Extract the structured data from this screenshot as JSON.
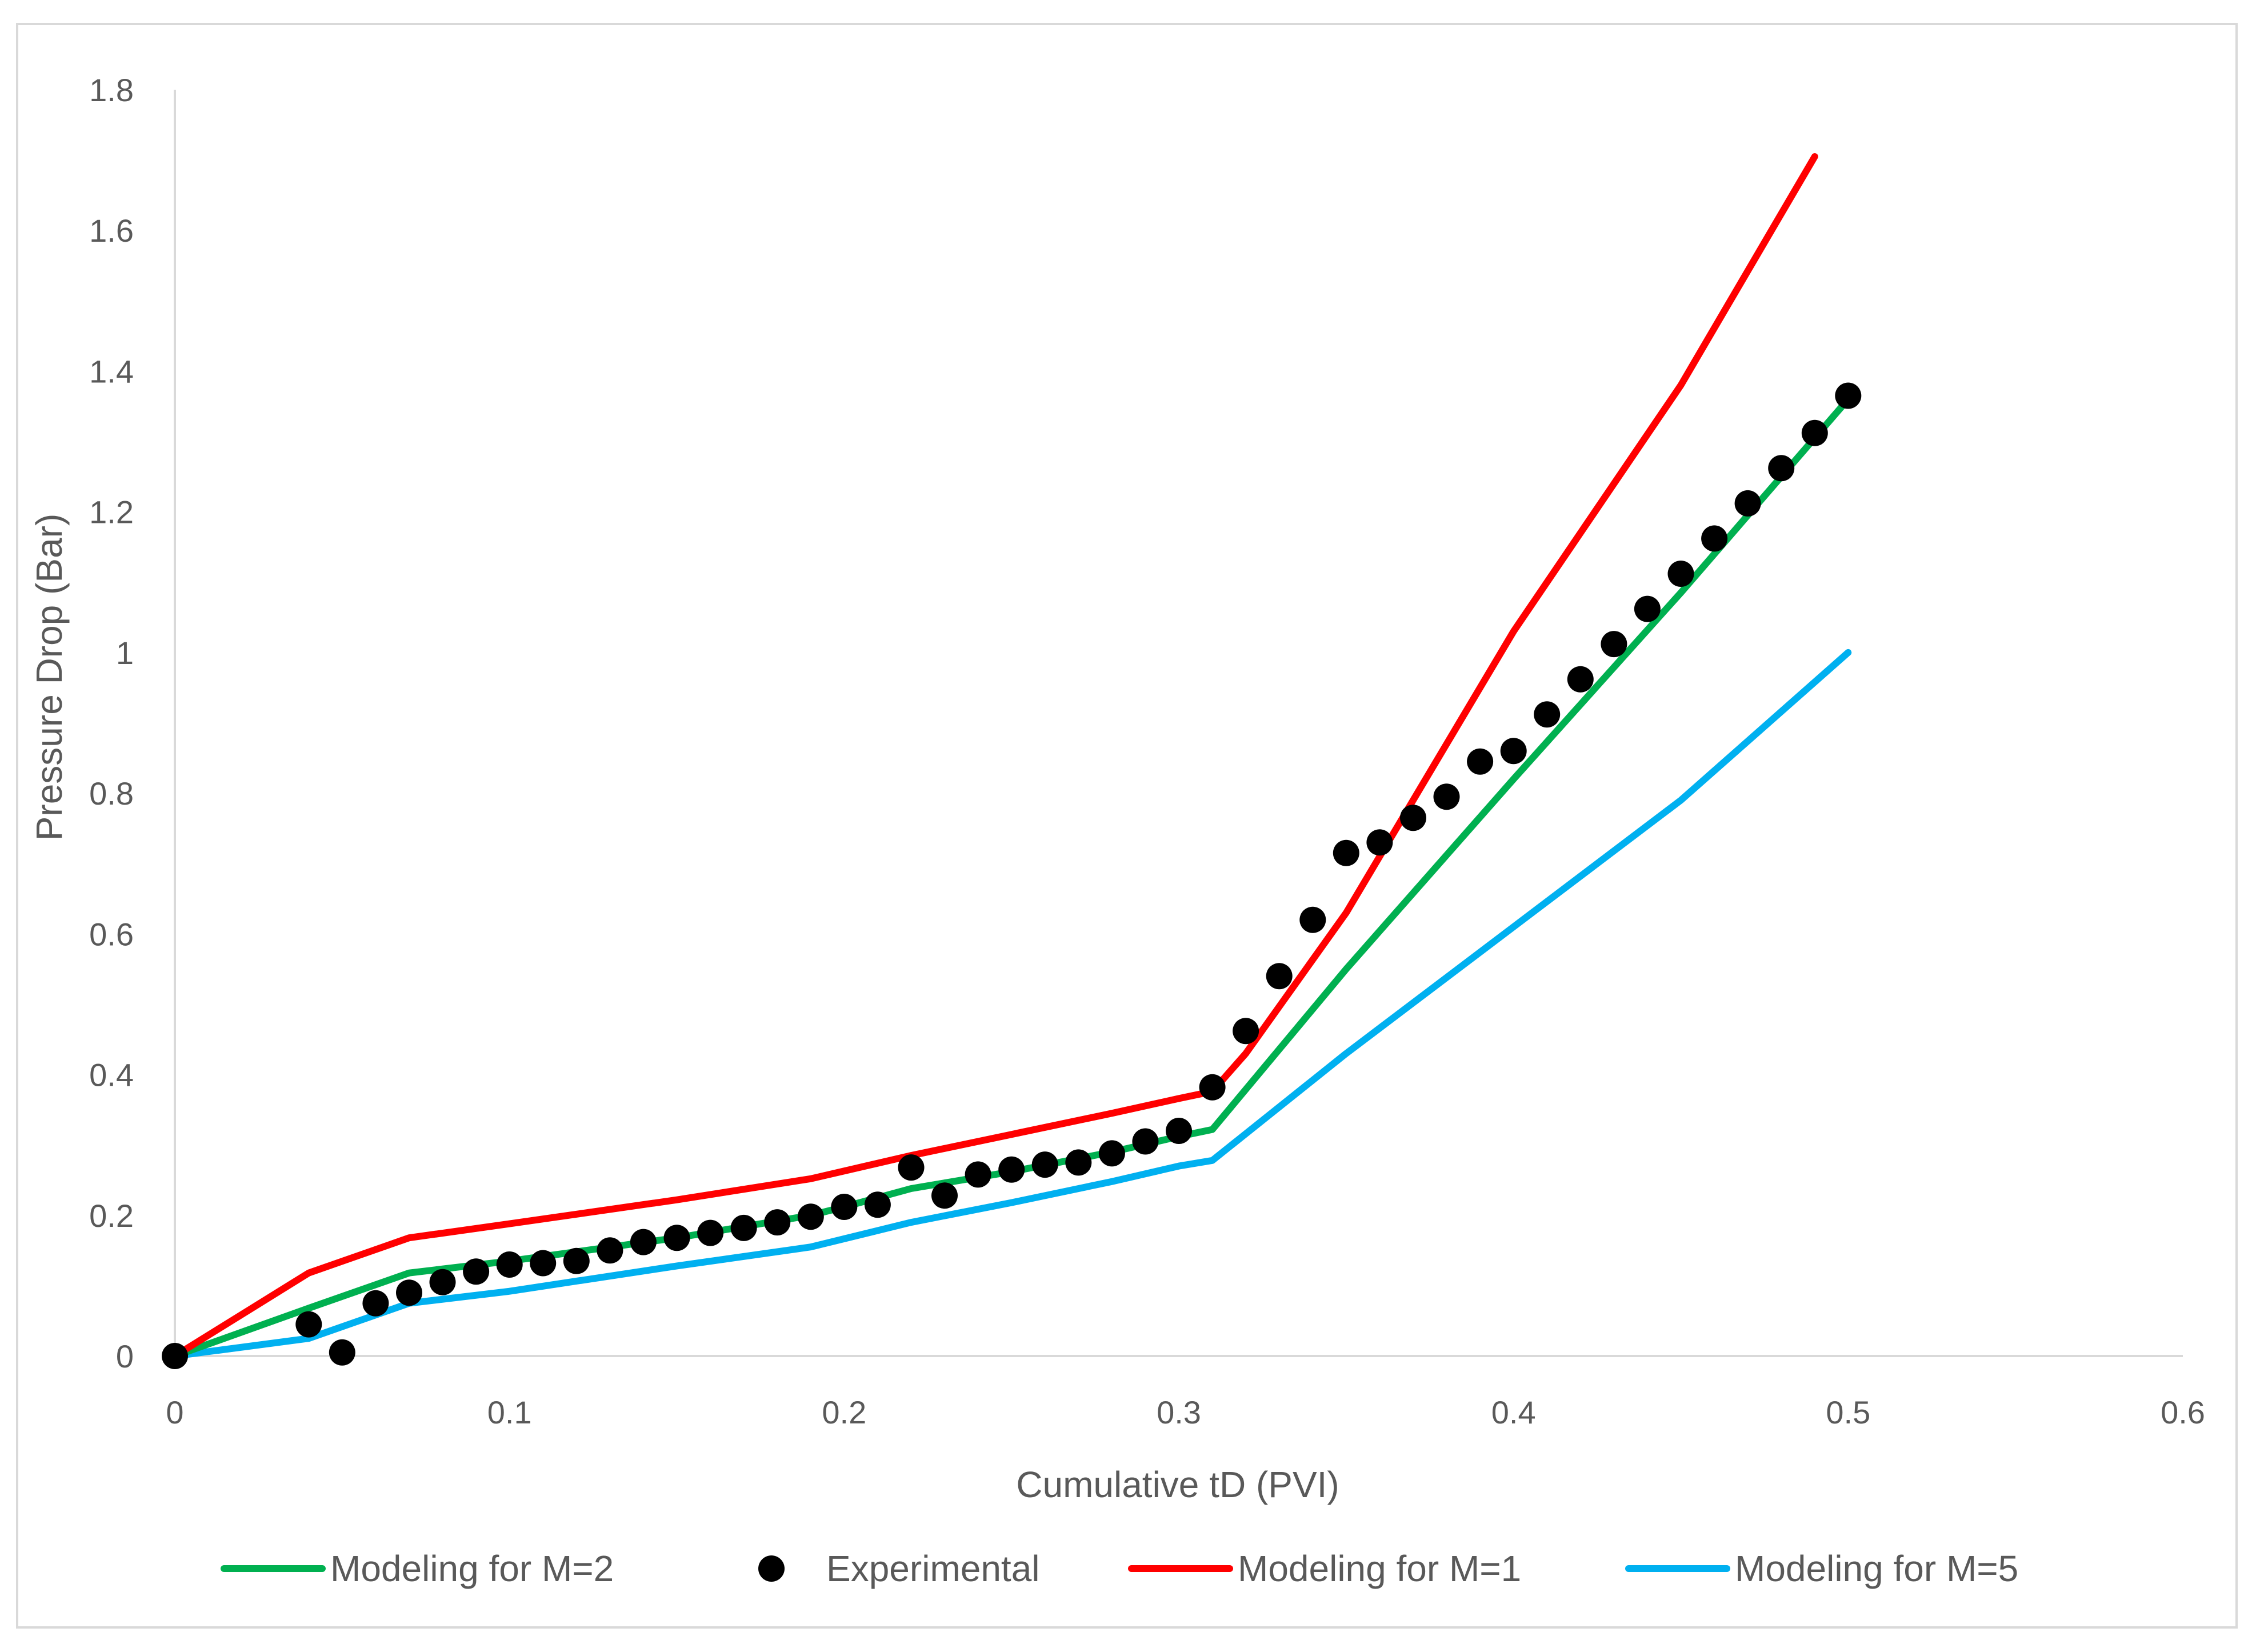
{
  "chart_data": {
    "type": "line",
    "title": "",
    "xlabel": "Cumulative tD (PVI)",
    "ylabel": "Pressure Drop (Bar)",
    "xlim": [
      0,
      0.6
    ],
    "ylim": [
      0,
      1.8
    ],
    "x_ticks": [
      "0",
      "0.1",
      "0.2",
      "0.3",
      "0.4",
      "0.5",
      "0.6"
    ],
    "y_ticks": [
      "0",
      "0.2",
      "0.4",
      "0.6",
      "0.8",
      "1",
      "1.2",
      "1.4",
      "1.6",
      "1.8"
    ],
    "x_tick_values": [
      0,
      0.1,
      0.2,
      0.3,
      0.4,
      0.5,
      0.6
    ],
    "y_tick_values": [
      0,
      0.2,
      0.4,
      0.6,
      0.8,
      1.0,
      1.2,
      1.4,
      1.6,
      1.8
    ],
    "grid": false,
    "legend_position": "bottom",
    "series": [
      {
        "name": "Modeling for M=2",
        "kind": "line",
        "color": "#00b050",
        "points": [
          [
            0,
            0
          ],
          [
            0.04,
            0.068
          ],
          [
            0.07,
            0.118
          ],
          [
            0.1,
            0.135
          ],
          [
            0.15,
            0.168
          ],
          [
            0.19,
            0.2
          ],
          [
            0.2,
            0.212
          ],
          [
            0.22,
            0.238
          ],
          [
            0.25,
            0.262
          ],
          [
            0.28,
            0.29
          ],
          [
            0.3,
            0.312
          ],
          [
            0.31,
            0.322
          ],
          [
            0.35,
            0.55
          ],
          [
            0.4,
            0.82
          ],
          [
            0.45,
            1.085
          ],
          [
            0.5,
            1.36
          ]
        ]
      },
      {
        "name": "Experimental",
        "kind": "scatter",
        "color": "#000000",
        "points": [
          [
            0,
            0
          ],
          [
            0.04,
            0.045
          ],
          [
            0.05,
            0.005
          ],
          [
            0.06,
            0.075
          ],
          [
            0.07,
            0.09
          ],
          [
            0.08,
            0.105
          ],
          [
            0.09,
            0.12
          ],
          [
            0.1,
            0.13
          ],
          [
            0.11,
            0.132
          ],
          [
            0.12,
            0.135
          ],
          [
            0.13,
            0.15
          ],
          [
            0.14,
            0.162
          ],
          [
            0.15,
            0.168
          ],
          [
            0.16,
            0.175
          ],
          [
            0.17,
            0.182
          ],
          [
            0.18,
            0.19
          ],
          [
            0.19,
            0.198
          ],
          [
            0.2,
            0.212
          ],
          [
            0.21,
            0.215
          ],
          [
            0.22,
            0.268
          ],
          [
            0.23,
            0.228
          ],
          [
            0.24,
            0.258
          ],
          [
            0.25,
            0.265
          ],
          [
            0.26,
            0.272
          ],
          [
            0.27,
            0.275
          ],
          [
            0.28,
            0.288
          ],
          [
            0.29,
            0.305
          ],
          [
            0.3,
            0.32
          ],
          [
            0.31,
            0.382
          ],
          [
            0.32,
            0.462
          ],
          [
            0.33,
            0.54
          ],
          [
            0.34,
            0.62
          ],
          [
            0.35,
            0.715
          ],
          [
            0.36,
            0.73
          ],
          [
            0.37,
            0.765
          ],
          [
            0.38,
            0.795
          ],
          [
            0.39,
            0.845
          ],
          [
            0.4,
            0.86
          ],
          [
            0.41,
            0.912
          ],
          [
            0.42,
            0.962
          ],
          [
            0.43,
            1.012
          ],
          [
            0.44,
            1.062
          ],
          [
            0.45,
            1.112
          ],
          [
            0.46,
            1.162
          ],
          [
            0.47,
            1.212
          ],
          [
            0.48,
            1.262
          ],
          [
            0.49,
            1.312
          ],
          [
            0.5,
            1.365
          ]
        ]
      },
      {
        "name": "Modeling for M=1",
        "kind": "line",
        "color": "#ff0000",
        "points": [
          [
            0,
            0
          ],
          [
            0.04,
            0.118
          ],
          [
            0.07,
            0.168
          ],
          [
            0.1,
            0.188
          ],
          [
            0.15,
            0.222
          ],
          [
            0.19,
            0.252
          ],
          [
            0.22,
            0.285
          ],
          [
            0.25,
            0.315
          ],
          [
            0.28,
            0.345
          ],
          [
            0.3,
            0.366
          ],
          [
            0.31,
            0.376
          ],
          [
            0.32,
            0.43
          ],
          [
            0.35,
            0.63
          ],
          [
            0.4,
            1.03
          ],
          [
            0.45,
            1.38
          ],
          [
            0.49,
            1.705
          ]
        ]
      },
      {
        "name": "Modeling for M=5",
        "kind": "line",
        "color": "#00b0f0",
        "points": [
          [
            0,
            0
          ],
          [
            0.04,
            0.025
          ],
          [
            0.07,
            0.075
          ],
          [
            0.1,
            0.092
          ],
          [
            0.15,
            0.128
          ],
          [
            0.19,
            0.155
          ],
          [
            0.22,
            0.19
          ],
          [
            0.25,
            0.218
          ],
          [
            0.28,
            0.248
          ],
          [
            0.3,
            0.27
          ],
          [
            0.31,
            0.278
          ],
          [
            0.35,
            0.43
          ],
          [
            0.4,
            0.61
          ],
          [
            0.45,
            0.79
          ],
          [
            0.5,
            1.0
          ]
        ]
      }
    ]
  }
}
